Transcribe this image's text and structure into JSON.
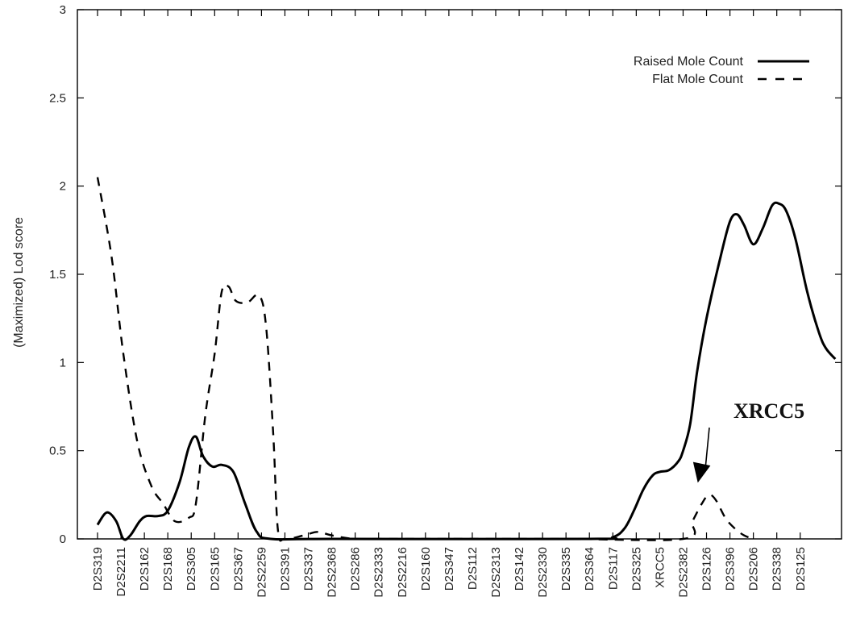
{
  "chart_data": {
    "type": "line",
    "title": "",
    "xlabel": "",
    "ylabel": "(Maximized) Lod score",
    "ylim": [
      0,
      3
    ],
    "yticks": [
      "0",
      "0.5",
      "1",
      "1.5",
      "2",
      "2.5",
      "3"
    ],
    "grid": false,
    "legend_position": "top-right",
    "markers": [
      {
        "label": "D2S319",
        "x": 0
      },
      {
        "label": "D2S2211",
        "x": 1
      },
      {
        "label": "D2S162",
        "x": 2
      },
      {
        "label": "D2S168",
        "x": 3
      },
      {
        "label": "D2S305",
        "x": 4
      },
      {
        "label": "D2S165",
        "x": 5
      },
      {
        "label": "D2S367",
        "x": 6
      },
      {
        "label": "D2S2259",
        "x": 7
      },
      {
        "label": "D2S391",
        "x": 8
      },
      {
        "label": "D2S337",
        "x": 9
      },
      {
        "label": "D2S2368",
        "x": 10
      },
      {
        "label": "D2S286",
        "x": 11
      },
      {
        "label": "D2S2333",
        "x": 12
      },
      {
        "label": "D2S2216",
        "x": 13
      },
      {
        "label": "D2S160",
        "x": 14
      },
      {
        "label": "D2S347",
        "x": 15
      },
      {
        "label": "D2S112",
        "x": 16
      },
      {
        "label": "D2S2313",
        "x": 17
      },
      {
        "label": "D2S142",
        "x": 18
      },
      {
        "label": "D2S2330",
        "x": 19
      },
      {
        "label": "D2S335",
        "x": 20
      },
      {
        "label": "D2S364",
        "x": 21
      },
      {
        "label": "D2S117",
        "x": 22
      },
      {
        "label": "D2S325",
        "x": 23
      },
      {
        "label": "XRCC5",
        "x": 24
      },
      {
        "label": "D2S2382",
        "x": 25
      },
      {
        "label": "D2S126",
        "x": 26
      },
      {
        "label": "D2S396",
        "x": 27
      },
      {
        "label": "D2S206",
        "x": 28
      },
      {
        "label": "D2S338",
        "x": 29
      },
      {
        "label": "D2S125",
        "x": 30
      }
    ],
    "series": [
      {
        "name": "Raised Mole Count",
        "style": "solid",
        "color": "#000000",
        "points": [
          [
            0,
            0.08
          ],
          [
            0.4,
            0.15
          ],
          [
            0.8,
            0.1
          ],
          [
            1.1,
            0.0
          ],
          [
            1.4,
            0.02
          ],
          [
            1.8,
            0.1
          ],
          [
            2.1,
            0.13
          ],
          [
            2.6,
            0.13
          ],
          [
            3.0,
            0.16
          ],
          [
            3.5,
            0.32
          ],
          [
            3.9,
            0.52
          ],
          [
            4.2,
            0.58
          ],
          [
            4.5,
            0.47
          ],
          [
            4.9,
            0.41
          ],
          [
            5.3,
            0.42
          ],
          [
            5.8,
            0.38
          ],
          [
            6.3,
            0.2
          ],
          [
            6.8,
            0.04
          ],
          [
            7.4,
            0.0
          ],
          [
            10.0,
            0.0
          ],
          [
            21.0,
            0.0
          ],
          [
            22.0,
            0.01
          ],
          [
            22.5,
            0.06
          ],
          [
            22.9,
            0.16
          ],
          [
            23.3,
            0.28
          ],
          [
            23.7,
            0.36
          ],
          [
            24.0,
            0.38
          ],
          [
            24.4,
            0.39
          ],
          [
            24.8,
            0.44
          ],
          [
            25.0,
            0.5
          ],
          [
            25.3,
            0.65
          ],
          [
            25.6,
            0.95
          ],
          [
            26.0,
            1.25
          ],
          [
            26.6,
            1.6
          ],
          [
            27.0,
            1.8
          ],
          [
            27.3,
            1.84
          ],
          [
            27.6,
            1.78
          ],
          [
            28.0,
            1.67
          ],
          [
            28.4,
            1.76
          ],
          [
            28.8,
            1.89
          ],
          [
            29.1,
            1.9
          ],
          [
            29.4,
            1.86
          ],
          [
            29.8,
            1.7
          ],
          [
            30.3,
            1.4
          ],
          [
            30.8,
            1.17
          ],
          [
            31.1,
            1.08
          ],
          [
            31.5,
            1.02
          ]
        ]
      },
      {
        "name": "Flat Mole Count",
        "style": "dashed",
        "color": "#000000",
        "points": [
          [
            0,
            2.05
          ],
          [
            0.6,
            1.6
          ],
          [
            1.1,
            1.05
          ],
          [
            1.7,
            0.55
          ],
          [
            2.3,
            0.3
          ],
          [
            2.8,
            0.2
          ],
          [
            3.3,
            0.1
          ],
          [
            3.9,
            0.12
          ],
          [
            4.2,
            0.2
          ],
          [
            4.6,
            0.7
          ],
          [
            5.0,
            1.05
          ],
          [
            5.3,
            1.4
          ],
          [
            5.6,
            1.43
          ],
          [
            5.9,
            1.35
          ],
          [
            6.4,
            1.34
          ],
          [
            6.9,
            1.38
          ],
          [
            7.2,
            1.2
          ],
          [
            7.5,
            0.6
          ],
          [
            7.7,
            0.05
          ],
          [
            8.0,
            0.0
          ],
          [
            8.8,
            0.02
          ],
          [
            9.4,
            0.04
          ],
          [
            10.0,
            0.02
          ],
          [
            11.0,
            0.0
          ],
          [
            12.5,
            0.0
          ],
          [
            19.8,
            0.0
          ],
          [
            25.0,
            0.0
          ],
          [
            25.4,
            0.1
          ],
          [
            25.8,
            0.2
          ],
          [
            26.1,
            0.25
          ],
          [
            26.4,
            0.22
          ],
          [
            26.8,
            0.12
          ],
          [
            27.2,
            0.06
          ],
          [
            27.6,
            0.02
          ],
          [
            28.0,
            0.0
          ]
        ]
      }
    ],
    "annotations": [
      {
        "text": "XRCC5",
        "arrow_to": {
          "x": 25.8,
          "y": 0.3
        }
      }
    ]
  }
}
